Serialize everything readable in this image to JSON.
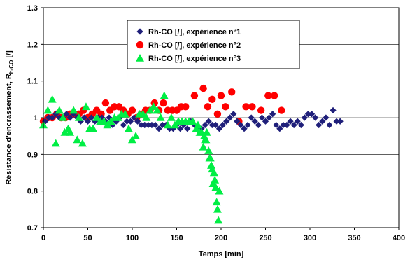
{
  "chart_data": {
    "type": "scatter",
    "title": "",
    "xlabel": "Temps [min]",
    "ylabel_main": "Résistance d'encrassement, R",
    "ylabel_sub": "h-CO",
    "ylabel_unit": " [/]",
    "xlim": [
      0,
      400
    ],
    "ylim": [
      0.7,
      1.3
    ],
    "xticks": [
      "0",
      "50",
      "100",
      "150",
      "200",
      "250",
      "300",
      "350",
      "400"
    ],
    "yticks": [
      "0.7",
      "0.8",
      "0.9",
      "1",
      "1.1",
      "1.2",
      "1.3"
    ],
    "grid": "horizontal",
    "legend_position": "top-center",
    "series": [
      {
        "name": "Rh-CO [/], expérience n°1",
        "marker": "diamond",
        "color": "#1f1f7a",
        "points": [
          [
            2,
            0.99
          ],
          [
            6,
            1.0
          ],
          [
            10,
            1.0
          ],
          [
            14,
            1.01
          ],
          [
            18,
            1.0
          ],
          [
            22,
            1.0
          ],
          [
            26,
            1.01
          ],
          [
            30,
            1.0
          ],
          [
            34,
            1.01
          ],
          [
            38,
            1.0
          ],
          [
            42,
            0.99
          ],
          [
            46,
            1.0
          ],
          [
            50,
            0.99
          ],
          [
            54,
            1.0
          ],
          [
            58,
            0.99
          ],
          [
            62,
            1.0
          ],
          [
            66,
            1.0
          ],
          [
            70,
            0.99
          ],
          [
            74,
            1.0
          ],
          [
            78,
            0.98
          ],
          [
            82,
            0.99
          ],
          [
            86,
            1.0
          ],
          [
            90,
            0.98
          ],
          [
            94,
            0.99
          ],
          [
            98,
            0.99
          ],
          [
            102,
            1.0
          ],
          [
            106,
            0.99
          ],
          [
            110,
            0.98
          ],
          [
            114,
            0.98
          ],
          [
            118,
            0.98
          ],
          [
            122,
            0.98
          ],
          [
            126,
            0.98
          ],
          [
            130,
            0.97
          ],
          [
            134,
            0.98
          ],
          [
            138,
            0.98
          ],
          [
            142,
            0.97
          ],
          [
            146,
            0.97
          ],
          [
            150,
            0.98
          ],
          [
            154,
            0.97
          ],
          [
            158,
            0.98
          ],
          [
            162,
            0.97
          ],
          [
            166,
            0.99
          ],
          [
            170,
            0.98
          ],
          [
            174,
            0.97
          ],
          [
            178,
            0.97
          ],
          [
            182,
            0.98
          ],
          [
            186,
            0.99
          ],
          [
            190,
            0.98
          ],
          [
            194,
            0.98
          ],
          [
            198,
            0.97
          ],
          [
            202,
            0.98
          ],
          [
            206,
            0.99
          ],
          [
            210,
            1.0
          ],
          [
            214,
            1.01
          ],
          [
            218,
            0.99
          ],
          [
            222,
            0.98
          ],
          [
            226,
            0.97
          ],
          [
            230,
            0.98
          ],
          [
            234,
            1.0
          ],
          [
            238,
            0.99
          ],
          [
            242,
            0.98
          ],
          [
            246,
            1.0
          ],
          [
            250,
            0.99
          ],
          [
            254,
            1.0
          ],
          [
            258,
            1.01
          ],
          [
            262,
            0.98
          ],
          [
            266,
            0.97
          ],
          [
            270,
            0.98
          ],
          [
            274,
            0.98
          ],
          [
            278,
            0.99
          ],
          [
            282,
            0.98
          ],
          [
            286,
            0.99
          ],
          [
            290,
            0.98
          ],
          [
            294,
            1.0
          ],
          [
            298,
            1.01
          ],
          [
            302,
            1.01
          ],
          [
            306,
            1.0
          ],
          [
            310,
            0.98
          ],
          [
            314,
            0.99
          ],
          [
            318,
            1.0
          ],
          [
            322,
            0.98
          ],
          [
            326,
            1.02
          ],
          [
            330,
            0.99
          ],
          [
            334,
            0.99
          ]
        ]
      },
      {
        "name": "Rh-CO [/], expérience n°2",
        "marker": "circle",
        "color": "#ff0000",
        "points": [
          [
            0,
            0.99
          ],
          [
            5,
            1.0
          ],
          [
            10,
            1.0
          ],
          [
            15,
            1.01
          ],
          [
            20,
            1.0
          ],
          [
            25,
            1.0
          ],
          [
            30,
            1.01
          ],
          [
            35,
            1.01
          ],
          [
            40,
            1.01
          ],
          [
            45,
            1.02
          ],
          [
            50,
            1.0
          ],
          [
            55,
            1.01
          ],
          [
            60,
            1.02
          ],
          [
            65,
            1.01
          ],
          [
            70,
            1.04
          ],
          [
            75,
            1.02
          ],
          [
            80,
            1.03
          ],
          [
            85,
            1.03
          ],
          [
            90,
            1.02
          ],
          [
            95,
            1.01
          ],
          [
            100,
            1.02
          ],
          [
            105,
            1.0
          ],
          [
            110,
            1.01
          ],
          [
            115,
            1.02
          ],
          [
            120,
            1.02
          ],
          [
            125,
            1.04
          ],
          [
            130,
            1.02
          ],
          [
            135,
            1.04
          ],
          [
            140,
            1.02
          ],
          [
            145,
            1.02
          ],
          [
            150,
            1.02
          ],
          [
            155,
            1.03
          ],
          [
            160,
            1.03
          ],
          [
            170,
            1.06
          ],
          [
            180,
            1.08
          ],
          [
            185,
            1.03
          ],
          [
            190,
            1.05
          ],
          [
            196,
            1.01
          ],
          [
            200,
            1.06
          ],
          [
            205,
            1.03
          ],
          [
            212,
            1.07
          ],
          [
            220,
            0.99
          ],
          [
            228,
            1.03
          ],
          [
            235,
            1.03
          ],
          [
            245,
            1.02
          ],
          [
            253,
            1.06
          ],
          [
            260,
            1.06
          ],
          [
            268,
            1.02
          ]
        ]
      },
      {
        "name": "Rh-CO [/], expérience n°3",
        "marker": "triangle",
        "color": "#00ee44",
        "points": [
          [
            0,
            0.98
          ],
          [
            5,
            1.02
          ],
          [
            10,
            1.05
          ],
          [
            14,
            0.93
          ],
          [
            18,
            1.02
          ],
          [
            22,
            1.0
          ],
          [
            24,
            0.96
          ],
          [
            28,
            0.97
          ],
          [
            30,
            0.96
          ],
          [
            34,
            1.02
          ],
          [
            38,
            0.94
          ],
          [
            40,
            1.0
          ],
          [
            44,
            0.93
          ],
          [
            48,
            1.03
          ],
          [
            52,
            0.97
          ],
          [
            56,
            0.97
          ],
          [
            60,
            1.0
          ],
          [
            64,
            0.99
          ],
          [
            68,
            0.99
          ],
          [
            72,
            0.98
          ],
          [
            76,
            0.99
          ],
          [
            80,
            1.0
          ],
          [
            84,
            1.0
          ],
          [
            88,
            1.01
          ],
          [
            92,
            1.01
          ],
          [
            96,
            0.97
          ],
          [
            100,
            0.94
          ],
          [
            104,
            0.95
          ],
          [
            108,
            1.01
          ],
          [
            112,
            1.01
          ],
          [
            116,
            1.0
          ],
          [
            120,
            1.02
          ],
          [
            124,
            1.03
          ],
          [
            128,
            1.02
          ],
          [
            132,
            1.0
          ],
          [
            136,
            1.06
          ],
          [
            140,
            0.98
          ],
          [
            144,
            1.0
          ],
          [
            148,
            0.98
          ],
          [
            152,
            0.99
          ],
          [
            156,
            0.99
          ],
          [
            160,
            0.99
          ],
          [
            164,
            0.99
          ],
          [
            168,
            0.99
          ],
          [
            172,
            0.97
          ],
          [
            174,
            0.98
          ],
          [
            176,
            0.96
          ],
          [
            178,
            0.96
          ],
          [
            180,
            0.92
          ],
          [
            181,
            0.95
          ],
          [
            182,
            0.94
          ],
          [
            183,
            0.94
          ],
          [
            184,
            0.96
          ],
          [
            186,
            0.91
          ],
          [
            187,
            0.89
          ],
          [
            188,
            0.89
          ],
          [
            189,
            0.87
          ],
          [
            190,
            0.86
          ],
          [
            191,
            0.82
          ],
          [
            192,
            0.85
          ],
          [
            193,
            0.83
          ],
          [
            194,
            0.81
          ],
          [
            195,
            0.77
          ],
          [
            196,
            0.75
          ],
          [
            197,
            0.72
          ],
          [
            198,
            0.8
          ]
        ]
      }
    ]
  }
}
